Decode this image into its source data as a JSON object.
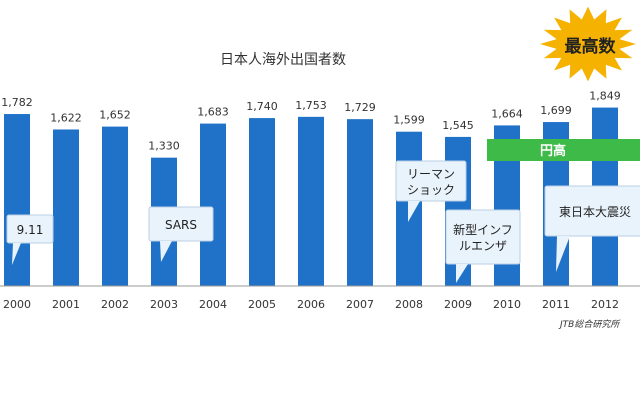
{
  "chart_data": {
    "type": "bar",
    "title": "日本人海外出国者数",
    "categories": [
      "2000",
      "2001",
      "2002",
      "2003",
      "2004",
      "2005",
      "2006",
      "2007",
      "2008",
      "2009",
      "2010",
      "2011",
      "2012"
    ],
    "values": [
      1782,
      1622,
      1652,
      1330,
      1683,
      1740,
      1753,
      1729,
      1599,
      1545,
      1664,
      1699,
      1849
    ],
    "value_labels": [
      "1,782",
      "1,622",
      "1,652",
      "1,330",
      "1,683",
      "1,740",
      "1,753",
      "1,729",
      "1,599",
      "1,545",
      "1,664",
      "1,699",
      "1,849"
    ],
    "xlabel": "",
    "ylabel": "",
    "ylim": [
      0,
      2000
    ],
    "grid": false,
    "bar_color": "#1f72c8",
    "annotations": [
      {
        "text": "9.11",
        "year": "2001"
      },
      {
        "text": "SARS",
        "year": "2003"
      },
      {
        "text": "リーマン\nショック",
        "year": "2008"
      },
      {
        "text": "新型インフ\nルエンザ",
        "year": "2009"
      },
      {
        "text": "東日本大震災",
        "year": "2011"
      }
    ],
    "banner": {
      "text": "円高",
      "from": "2010",
      "to": "2012",
      "color": "#3dba48"
    },
    "starburst": {
      "text": "最高数",
      "color": "#f6b200"
    },
    "source": "JTB総合研究所"
  }
}
